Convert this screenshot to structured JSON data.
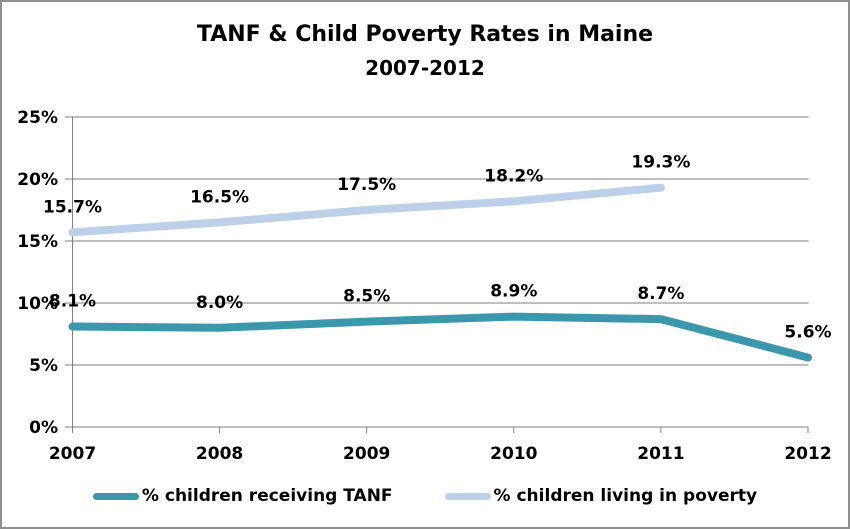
{
  "chart_data": {
    "type": "line",
    "title": "TANF & Child Poverty Rates in Maine",
    "subtitle": "2007-2012",
    "categories": [
      "2007",
      "2008",
      "2009",
      "2010",
      "2011",
      "2012"
    ],
    "series": [
      {
        "name": "% children receiving TANF",
        "color": "#3b97ab",
        "values": [
          8.1,
          8.0,
          8.5,
          8.9,
          8.7,
          5.6
        ],
        "labels": [
          "8.1%",
          "8.0%",
          "8.5%",
          "8.9%",
          "8.7%",
          "5.6%"
        ]
      },
      {
        "name": "% children living in poverty",
        "color": "#bdd0e9",
        "values": [
          15.7,
          16.5,
          17.5,
          18.2,
          19.3
        ],
        "labels": [
          "15.7%",
          "16.5%",
          "17.5%",
          "18.2%",
          "19.3%"
        ]
      }
    ],
    "x_axis": {
      "tick_labels": [
        "2007",
        "2008",
        "2009",
        "2010",
        "2011",
        "2012"
      ]
    },
    "y_axis": {
      "min": 0,
      "max": 25,
      "step": 5,
      "tick_labels": [
        "0%",
        "5%",
        "10%",
        "15%",
        "20%",
        "25%"
      ]
    },
    "grid": true,
    "grid_color": "#7f7f7f",
    "legend_position": "bottom"
  },
  "frame": {
    "border_color": "#8f8f8f",
    "background": "#ffffff"
  }
}
